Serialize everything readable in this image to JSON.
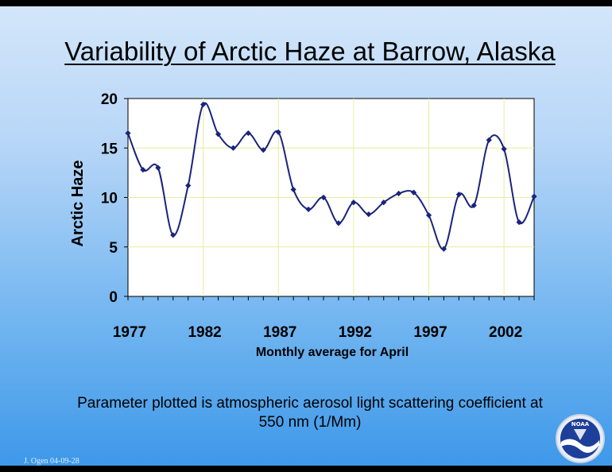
{
  "slide": {
    "title": "Variability of Arctic Haze at Barrow, Alaska",
    "caption_line1": "Parameter plotted is atmospheric aerosol light scattering coefficient at",
    "caption_line2": "550 nm (1/Mm)",
    "credit": "J. Ogen  04-09-28",
    "logo_text": "NOAA"
  },
  "chart_data": {
    "type": "line",
    "title": "",
    "xlabel": "Monthly average for April",
    "ylabel": "Arctic Haze",
    "xlim": [
      1977,
      2004
    ],
    "ylim": [
      0,
      20
    ],
    "xticks": [
      1977,
      1982,
      1987,
      1992,
      1997,
      2002
    ],
    "yticks": [
      0,
      5,
      10,
      15,
      20
    ],
    "grid": true,
    "legend": "none",
    "series_color": "#1a237e",
    "x": [
      1977,
      1978,
      1979,
      1980,
      1981,
      1982,
      1983,
      1984,
      1985,
      1986,
      1987,
      1988,
      1989,
      1990,
      1991,
      1992,
      1993,
      1994,
      1995,
      1996,
      1997,
      1998,
      1999,
      2000,
      2001,
      2002,
      2003,
      2004
    ],
    "values": [
      16.5,
      12.8,
      13.0,
      6.2,
      11.2,
      19.4,
      16.4,
      15.0,
      16.5,
      14.8,
      16.6,
      10.8,
      8.8,
      10.0,
      7.4,
      9.5,
      8.3,
      9.5,
      10.4,
      10.5,
      8.2,
      4.8,
      10.3,
      9.2,
      15.8,
      14.9,
      7.5,
      10.1
    ]
  }
}
